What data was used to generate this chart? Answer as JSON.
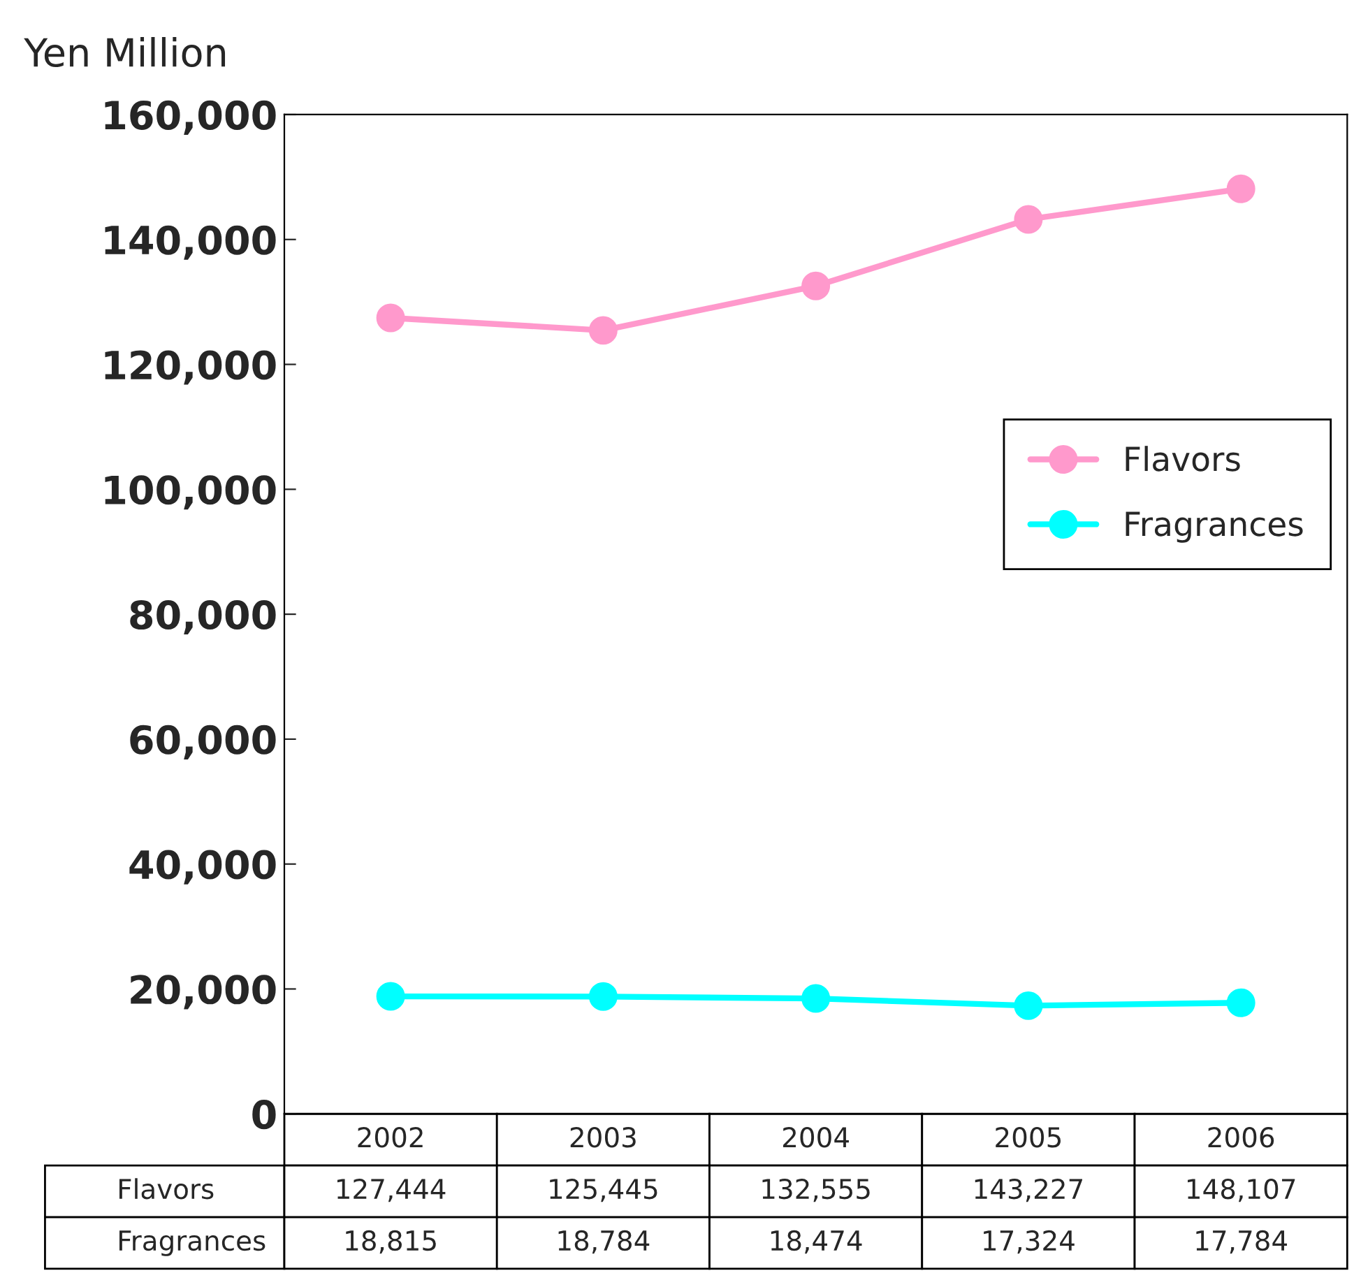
{
  "chart_data": {
    "type": "line",
    "ylabel": "Yen Million",
    "categories": [
      "2002",
      "2003",
      "2004",
      "2005",
      "2006"
    ],
    "series": [
      {
        "name": "Flavors",
        "color": "#ff99cc",
        "values": [
          127444,
          125445,
          132555,
          143227,
          148107
        ],
        "value_labels": [
          "127,444",
          "125,445",
          "132,555",
          "143,227",
          "148,107"
        ]
      },
      {
        "name": "Fragrances",
        "color": "#00ffff",
        "values": [
          18815,
          18784,
          18474,
          17324,
          17784
        ],
        "value_labels": [
          "18,815",
          "18,784",
          "18,474",
          "17,324",
          "17,784"
        ]
      }
    ],
    "ylim": [
      0,
      160000
    ],
    "yticks": [
      0,
      {
        "value": 20000,
        "label": "20,000"
      },
      {
        "value": 40000,
        "label": "40,000"
      },
      {
        "value": 60000,
        "label": "60,000"
      },
      {
        "value": 80000,
        "label": "80,000"
      },
      {
        "value": 100000,
        "label": "100,000"
      },
      {
        "value": 120000,
        "label": "120,000"
      },
      {
        "value": 140000,
        "label": "140,000"
      },
      {
        "value": 160000,
        "label": "160,000"
      }
    ],
    "grid": false,
    "legend": "right",
    "marker": "circle",
    "line_style": "solid"
  }
}
